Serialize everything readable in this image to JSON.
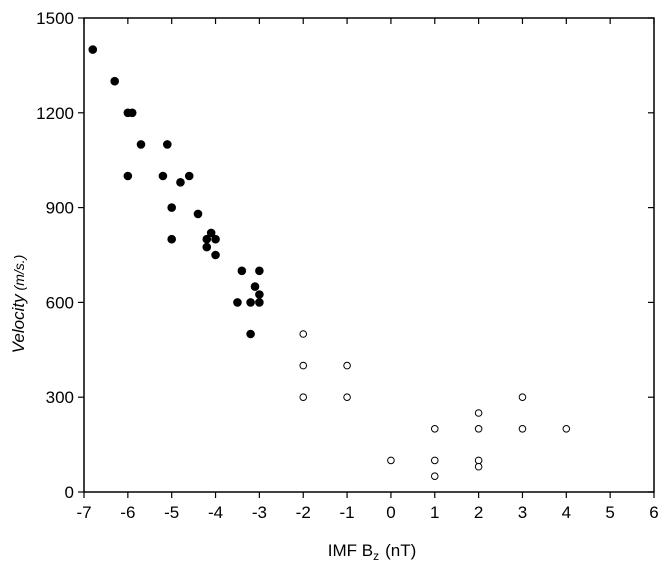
{
  "chart_data": {
    "type": "scatter",
    "title": "",
    "xlabel": {
      "main": "IMF B",
      "sub": "z",
      "unit": "(nT)"
    },
    "ylabel": {
      "main": "Velocity",
      "unit": "(m/s.)"
    },
    "xlim": [
      -7,
      6
    ],
    "ylim": [
      0,
      1500
    ],
    "xticks": [
      -7,
      -6,
      -5,
      -4,
      -3,
      -2,
      -1,
      0,
      1,
      2,
      3,
      4,
      5,
      6
    ],
    "yticks": [
      0,
      300,
      600,
      900,
      1200,
      1500
    ],
    "grid": false,
    "series": [
      {
        "marker": "filled-circle",
        "color": "#000000",
        "points": [
          [
            -6.8,
            1400
          ],
          [
            -6.3,
            1300
          ],
          [
            -6.0,
            1200
          ],
          [
            -5.9,
            1200
          ],
          [
            -5.7,
            1100
          ],
          [
            -5.1,
            1100
          ],
          [
            -6.0,
            1000
          ],
          [
            -5.2,
            1000
          ],
          [
            -4.6,
            1000
          ],
          [
            -4.8,
            980
          ],
          [
            -5.0,
            900
          ],
          [
            -4.4,
            880
          ],
          [
            -5.0,
            800
          ],
          [
            -4.2,
            800
          ],
          [
            -4.0,
            800
          ],
          [
            -4.1,
            820
          ],
          [
            -4.2,
            775
          ],
          [
            -4.0,
            750
          ],
          [
            -3.4,
            700
          ],
          [
            -3.0,
            700
          ],
          [
            -3.1,
            650
          ],
          [
            -3.0,
            625
          ],
          [
            -3.5,
            600
          ],
          [
            -3.2,
            600
          ],
          [
            -3.0,
            600
          ],
          [
            -3.2,
            500
          ]
        ]
      },
      {
        "marker": "open-circle",
        "color": "#000000",
        "points": [
          [
            -2,
            500
          ],
          [
            -2,
            400
          ],
          [
            -2,
            300
          ],
          [
            -1,
            400
          ],
          [
            -1,
            300
          ],
          [
            0,
            100
          ],
          [
            1,
            200
          ],
          [
            1,
            100
          ],
          [
            1,
            50
          ],
          [
            2,
            250
          ],
          [
            2,
            200
          ],
          [
            2,
            100
          ],
          [
            2,
            80
          ],
          [
            3,
            300
          ],
          [
            3,
            200
          ],
          [
            4,
            200
          ]
        ]
      }
    ]
  }
}
